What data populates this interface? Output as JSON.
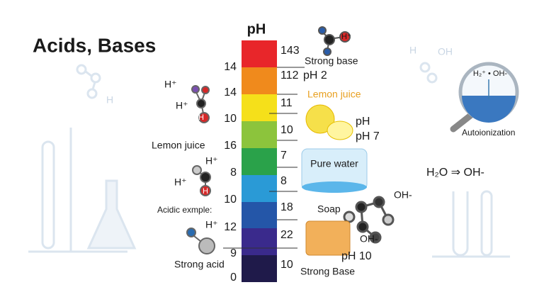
{
  "title": "Acids, Bases",
  "scale": {
    "header": "pH",
    "left_numbers": [
      "14",
      "14",
      "10",
      "16",
      "8",
      "10",
      "12",
      "9",
      "0"
    ],
    "right_numbers": [
      "143",
      "112",
      "11",
      "10",
      "7",
      "8",
      "18",
      "22",
      "10"
    ]
  },
  "right_labels": {
    "strong_base_top": "Strong base",
    "ph_2": "pH 2",
    "lemon_juice": "Lemon juice",
    "ph": "pH",
    "ph_7": "pH 7",
    "pure_water": "Pure water",
    "soap": "Soap",
    "oh_top": "OH-",
    "oh_bottom": "OH-",
    "ph_10": "pH 10",
    "strong_base_bottom": "Strong Base"
  },
  "left_labels": {
    "h1": "H⁺",
    "h2": "H⁺",
    "h3": "H",
    "lemon_juice": "Lemon juice",
    "h4": "H⁺",
    "h5": "H⁺",
    "h6": "H",
    "acidic_example": "Acidic exmple:",
    "h7": "H⁺",
    "strong_acid": "Strong acid"
  },
  "top_molecule": "H⁺",
  "magnifier": {
    "formula": "H₂⁺ • OH-",
    "caption": "Autoionization"
  },
  "reaction": "H₂O ⇒ OH-",
  "faint": {
    "h_left": "H",
    "h_right": "H",
    "oh_right": "OH"
  }
}
